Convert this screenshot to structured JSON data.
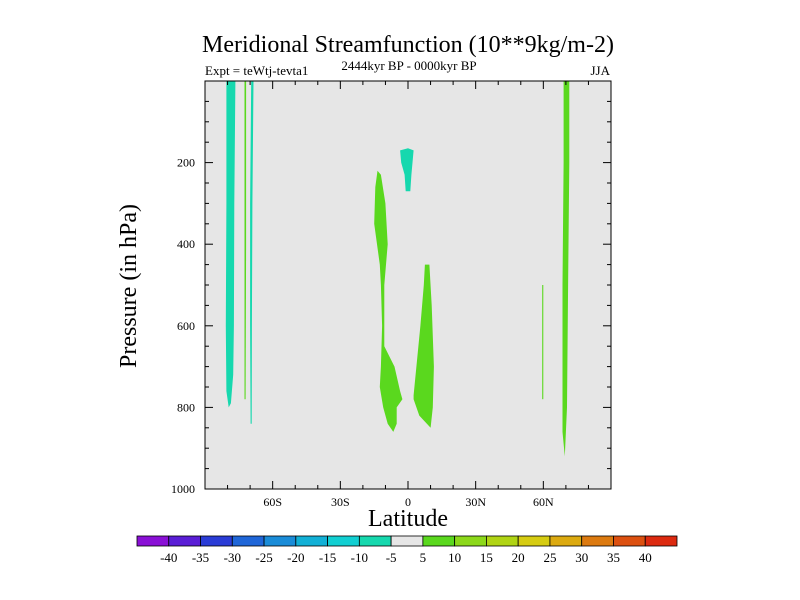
{
  "chart_data": {
    "type": "filled-contour",
    "title": "Meridional Streamfunction (10**9kg/m-2)",
    "subtitle_left": "Expt = teWtj-tevta1",
    "subtitle_center": "2444kyr BP - 0000kyr BP",
    "subtitle_right": "JJA",
    "xlabel": "Latitude",
    "ylabel": "Pressure (in hPa)",
    "xlim": [
      -90,
      90
    ],
    "ylim": [
      1000,
      0
    ],
    "x_ticks": [
      {
        "value": -60,
        "label": "60S"
      },
      {
        "value": -30,
        "label": "30S"
      },
      {
        "value": 0,
        "label": "0"
      },
      {
        "value": 30,
        "label": "30N"
      },
      {
        "value": 60,
        "label": "60N"
      }
    ],
    "y_ticks": [
      {
        "value": 200,
        "label": "200"
      },
      {
        "value": 400,
        "label": "400"
      },
      {
        "value": 600,
        "label": "600"
      },
      {
        "value": 800,
        "label": "800"
      },
      {
        "value": 1000,
        "label": "1000"
      }
    ],
    "background_color": "#e6e6e6",
    "colorbar": {
      "levels": [
        "-40",
        "-35",
        "-30",
        "-25",
        "-20",
        "-15",
        "-10",
        "-5",
        "5",
        "10",
        "15",
        "20",
        "25",
        "30",
        "35",
        "40"
      ],
      "colors": [
        "#8a10d6",
        "#5a1ed6",
        "#2a3cd6",
        "#1f66d8",
        "#1a8cd8",
        "#12b0d6",
        "#11cfd2",
        "#16d8ae",
        "#e6e6e6",
        "#5ad81e",
        "#8cd81a",
        "#b0d414",
        "#d6cc12",
        "#dcaa10",
        "#dc7a10",
        "#dc5010",
        "#dc2a10"
      ]
    },
    "regions": [
      {
        "value": "-10 to -5",
        "color": "#16d8ae",
        "points": [
          [
            -80.5,
            0
          ],
          [
            -76.5,
            0
          ],
          [
            -77,
            300
          ],
          [
            -77.2,
            600
          ],
          [
            -77.5,
            720
          ],
          [
            -78.5,
            790
          ],
          [
            -79.5,
            800
          ],
          [
            -80.5,
            760
          ],
          [
            -80.8,
            600
          ],
          [
            -80.5,
            300
          ]
        ]
      },
      {
        "value": "5 to 10",
        "color": "#5ad81e",
        "points": [
          [
            -72.5,
            0
          ],
          [
            -71.8,
            0
          ],
          [
            -71.8,
            400
          ],
          [
            -72,
            780
          ],
          [
            -72.5,
            780
          ],
          [
            -72.5,
            400
          ]
        ]
      },
      {
        "value": "-10 to -5",
        "color": "#16d8ae",
        "points": [
          [
            -69.5,
            0
          ],
          [
            -68.5,
            0
          ],
          [
            -69,
            300
          ],
          [
            -69.2,
            600
          ],
          [
            -69.3,
            840
          ],
          [
            -69.8,
            840
          ],
          [
            -70,
            600
          ],
          [
            -70,
            300
          ]
        ]
      },
      {
        "value": "-10 to -5",
        "color": "#16d8ae",
        "points": [
          [
            -3.5,
            170
          ],
          [
            0,
            165
          ],
          [
            2.5,
            170
          ],
          [
            2,
            200
          ],
          [
            1.5,
            230
          ],
          [
            1,
            270
          ],
          [
            -1,
            270
          ],
          [
            -1.5,
            230
          ],
          [
            -3,
            200
          ]
        ]
      },
      {
        "value": "5 to 10",
        "color": "#5ad81e",
        "points": [
          [
            -13.5,
            220
          ],
          [
            -12,
            230
          ],
          [
            -10,
            300
          ],
          [
            -9,
            400
          ],
          [
            -10.5,
            500
          ],
          [
            -10.5,
            560
          ],
          [
            -10.5,
            650
          ],
          [
            -6,
            700
          ],
          [
            -3.5,
            760
          ],
          [
            -2.5,
            780
          ],
          [
            -5,
            800
          ],
          [
            -5,
            840
          ],
          [
            -6.5,
            860
          ],
          [
            -9,
            840
          ],
          [
            -11,
            800
          ],
          [
            -12.5,
            750
          ],
          [
            -12,
            700
          ],
          [
            -11.5,
            600
          ],
          [
            -12,
            500
          ],
          [
            -12.5,
            450
          ],
          [
            -15,
            350
          ],
          [
            -14.5,
            260
          ]
        ]
      },
      {
        "value": "5 to 10",
        "color": "#5ad81e",
        "points": [
          [
            7.5,
            450
          ],
          [
            9.5,
            450
          ],
          [
            10.5,
            550
          ],
          [
            11.5,
            700
          ],
          [
            11,
            800
          ],
          [
            10,
            850
          ],
          [
            5,
            820
          ],
          [
            2.5,
            780
          ],
          [
            2.5,
            770
          ],
          [
            5.5,
            600
          ],
          [
            7,
            500
          ]
        ]
      },
      {
        "value": "5 to 10",
        "color": "#5ad81e",
        "points": [
          [
            59.5,
            500
          ],
          [
            60,
            500
          ],
          [
            60,
            780
          ],
          [
            59.5,
            780
          ]
        ]
      },
      {
        "value": "5 to 10",
        "color": "#5ad81e",
        "points": [
          [
            69,
            0
          ],
          [
            71.5,
            0
          ],
          [
            71.5,
            200
          ],
          [
            71,
            500
          ],
          [
            70.5,
            800
          ],
          [
            69.5,
            920
          ],
          [
            68.5,
            860
          ],
          [
            68.5,
            800
          ],
          [
            68.5,
            500
          ],
          [
            69,
            200
          ]
        ]
      }
    ]
  }
}
